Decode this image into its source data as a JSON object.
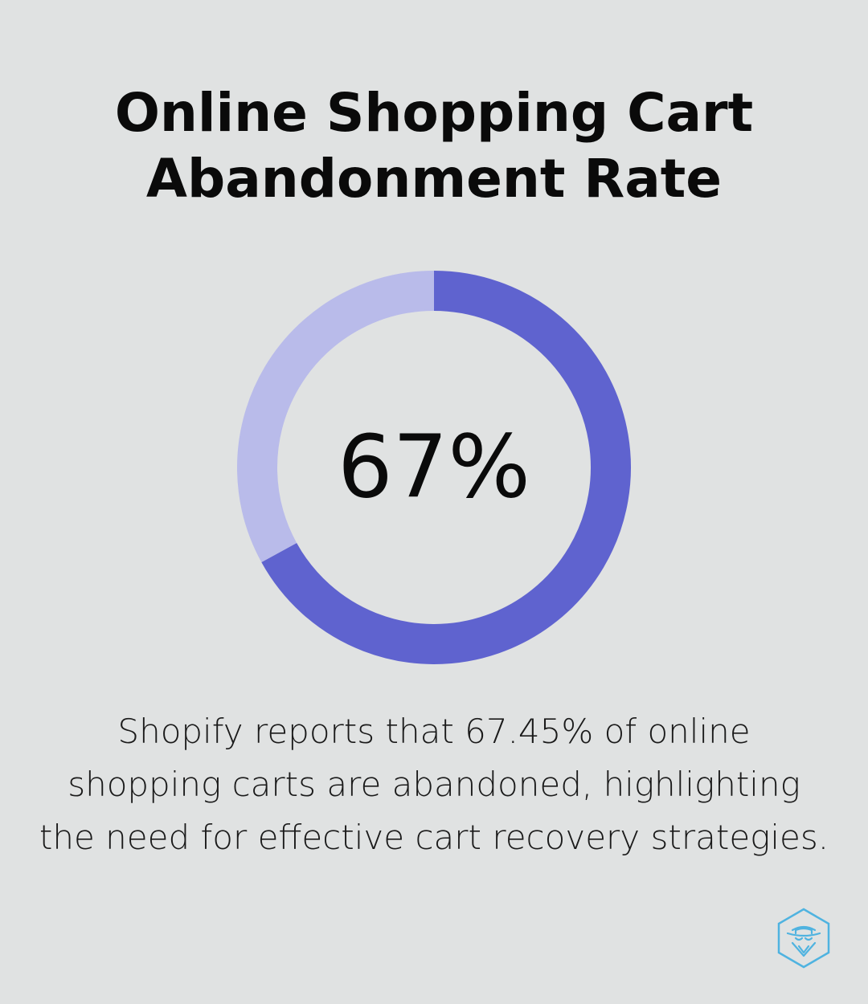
{
  "title": {
    "line1": "Online Shopping Cart",
    "line2": "Abandonment Rate"
  },
  "center_label": "67%",
  "caption": {
    "line1": "Shopify reports that 67.45% of online",
    "line2": "shopping carts are abandoned, highlighting",
    "line3": "the need for effective cart recovery strategies."
  },
  "colors": {
    "background": "#e0e2e2",
    "filled": "#5f63cf",
    "remainder": "#b9bbea",
    "logo": "#4fb3e0"
  },
  "logo_icon": "hexagon-spy-hat-icon",
  "chart_data": {
    "type": "pie",
    "variant": "donut",
    "labels": [
      "",
      ""
    ],
    "values": [
      67,
      33
    ],
    "center_text": "67%",
    "start_angle": "top",
    "direction": "clockwise"
  }
}
